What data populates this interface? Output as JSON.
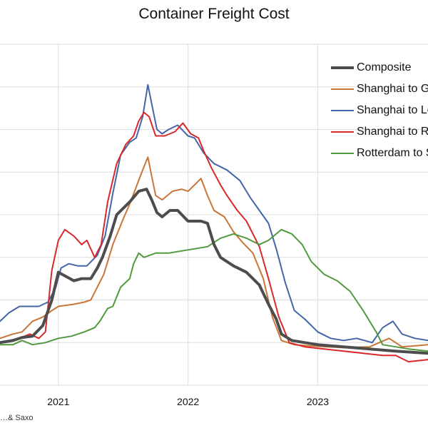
{
  "chart_data": {
    "type": "line",
    "title": "Container Freight Cost",
    "source_text": "…& Saxo",
    "xlabel": "",
    "ylabel": "",
    "x_ticks": [
      "2021",
      "2022",
      "2023"
    ],
    "x_range": [
      2020.55,
      2023.85
    ],
    "y_range": [
      0,
      8
    ],
    "y_tick_labels": [],
    "grid": true,
    "legend_position": "top-right",
    "series": [
      {
        "name": "Composite",
        "color": "#4d4d4d",
        "width": 4,
        "points": [
          [
            2020.55,
            1.0
          ],
          [
            2020.65,
            1.05
          ],
          [
            2020.72,
            1.12
          ],
          [
            2020.8,
            1.15
          ],
          [
            2020.88,
            1.4
          ],
          [
            2020.95,
            2.0
          ],
          [
            2021.0,
            2.65
          ],
          [
            2021.06,
            2.55
          ],
          [
            2021.12,
            2.45
          ],
          [
            2021.18,
            2.5
          ],
          [
            2021.25,
            2.5
          ],
          [
            2021.3,
            2.75
          ],
          [
            2021.34,
            3.0
          ],
          [
            2021.4,
            3.5
          ],
          [
            2021.45,
            4.0
          ],
          [
            2021.55,
            4.3
          ],
          [
            2021.62,
            4.55
          ],
          [
            2021.68,
            4.6
          ],
          [
            2021.72,
            4.35
          ],
          [
            2021.76,
            4.05
          ],
          [
            2021.8,
            3.95
          ],
          [
            2021.86,
            4.1
          ],
          [
            2021.92,
            4.1
          ],
          [
            2022.0,
            3.85
          ],
          [
            2022.05,
            3.85
          ],
          [
            2022.1,
            3.85
          ],
          [
            2022.15,
            3.8
          ],
          [
            2022.2,
            3.3
          ],
          [
            2022.25,
            3.0
          ],
          [
            2022.35,
            2.8
          ],
          [
            2022.45,
            2.65
          ],
          [
            2022.55,
            2.35
          ],
          [
            2022.62,
            1.9
          ],
          [
            2022.68,
            1.55
          ],
          [
            2022.72,
            1.2
          ],
          [
            2022.8,
            1.05
          ],
          [
            2022.9,
            1.0
          ],
          [
            2023.0,
            0.95
          ],
          [
            2023.2,
            0.9
          ],
          [
            2023.4,
            0.85
          ],
          [
            2023.6,
            0.8
          ],
          [
            2023.85,
            0.75
          ]
        ]
      },
      {
        "name": "Shanghai to Genoa",
        "color": "#c87537",
        "width": 2,
        "points": [
          [
            2020.55,
            1.1
          ],
          [
            2020.65,
            1.2
          ],
          [
            2020.72,
            1.25
          ],
          [
            2020.8,
            1.5
          ],
          [
            2020.88,
            1.6
          ],
          [
            2020.95,
            1.75
          ],
          [
            2021.0,
            1.85
          ],
          [
            2021.12,
            1.9
          ],
          [
            2021.2,
            1.95
          ],
          [
            2021.25,
            2.0
          ],
          [
            2021.3,
            2.3
          ],
          [
            2021.35,
            2.6
          ],
          [
            2021.42,
            3.3
          ],
          [
            2021.5,
            3.9
          ],
          [
            2021.55,
            4.25
          ],
          [
            2021.6,
            4.65
          ],
          [
            2021.65,
            5.05
          ],
          [
            2021.69,
            5.35
          ],
          [
            2021.72,
            4.9
          ],
          [
            2021.75,
            4.45
          ],
          [
            2021.8,
            4.35
          ],
          [
            2021.88,
            4.55
          ],
          [
            2021.95,
            4.6
          ],
          [
            2022.0,
            4.55
          ],
          [
            2022.05,
            4.7
          ],
          [
            2022.1,
            4.85
          ],
          [
            2022.15,
            4.45
          ],
          [
            2022.2,
            4.1
          ],
          [
            2022.28,
            3.95
          ],
          [
            2022.35,
            3.6
          ],
          [
            2022.42,
            3.35
          ],
          [
            2022.5,
            3.1
          ],
          [
            2022.58,
            2.5
          ],
          [
            2022.65,
            1.6
          ],
          [
            2022.72,
            1.05
          ],
          [
            2022.82,
            0.95
          ],
          [
            2022.95,
            0.92
          ],
          [
            2023.2,
            0.88
          ],
          [
            2023.4,
            0.9
          ],
          [
            2023.55,
            1.1
          ],
          [
            2023.65,
            0.9
          ],
          [
            2023.85,
            0.95
          ]
        ]
      },
      {
        "name": "Shanghai to Los Angeles",
        "color": "#4366a9",
        "width": 2,
        "points": [
          [
            2020.55,
            1.5
          ],
          [
            2020.62,
            1.7
          ],
          [
            2020.7,
            1.85
          ],
          [
            2020.78,
            1.85
          ],
          [
            2020.85,
            1.85
          ],
          [
            2020.92,
            1.95
          ],
          [
            2020.98,
            2.3
          ],
          [
            2021.02,
            2.75
          ],
          [
            2021.08,
            2.85
          ],
          [
            2021.15,
            2.8
          ],
          [
            2021.22,
            2.8
          ],
          [
            2021.3,
            3.05
          ],
          [
            2021.36,
            3.5
          ],
          [
            2021.42,
            4.5
          ],
          [
            2021.48,
            5.4
          ],
          [
            2021.55,
            5.7
          ],
          [
            2021.6,
            5.8
          ],
          [
            2021.65,
            6.3
          ],
          [
            2021.69,
            7.05
          ],
          [
            2021.72,
            6.6
          ],
          [
            2021.76,
            6.0
          ],
          [
            2021.8,
            5.9
          ],
          [
            2021.85,
            6.0
          ],
          [
            2021.92,
            6.1
          ],
          [
            2022.0,
            5.85
          ],
          [
            2022.05,
            5.8
          ],
          [
            2022.12,
            5.45
          ],
          [
            2022.2,
            5.2
          ],
          [
            2022.3,
            5.05
          ],
          [
            2022.4,
            4.8
          ],
          [
            2022.48,
            4.4
          ],
          [
            2022.55,
            4.1
          ],
          [
            2022.62,
            3.8
          ],
          [
            2022.68,
            3.2
          ],
          [
            2022.75,
            2.4
          ],
          [
            2022.82,
            1.75
          ],
          [
            2022.9,
            1.55
          ],
          [
            2023.0,
            1.25
          ],
          [
            2023.1,
            1.1
          ],
          [
            2023.2,
            1.05
          ],
          [
            2023.3,
            1.1
          ],
          [
            2023.42,
            1.0
          ],
          [
            2023.5,
            1.35
          ],
          [
            2023.58,
            1.5
          ],
          [
            2023.65,
            1.2
          ],
          [
            2023.75,
            1.1
          ],
          [
            2023.85,
            1.05
          ]
        ]
      },
      {
        "name": "Shanghai to Rotterdam",
        "color": "#d8282b",
        "width": 2,
        "points": [
          [
            2020.55,
            1.0
          ],
          [
            2020.62,
            1.05
          ],
          [
            2020.7,
            1.1
          ],
          [
            2020.78,
            1.2
          ],
          [
            2020.85,
            1.1
          ],
          [
            2020.9,
            1.25
          ],
          [
            2020.95,
            2.7
          ],
          [
            2021.0,
            3.4
          ],
          [
            2021.05,
            3.65
          ],
          [
            2021.12,
            3.5
          ],
          [
            2021.18,
            3.3
          ],
          [
            2021.22,
            3.4
          ],
          [
            2021.28,
            3.0
          ],
          [
            2021.33,
            3.3
          ],
          [
            2021.38,
            4.3
          ],
          [
            2021.45,
            5.2
          ],
          [
            2021.52,
            5.65
          ],
          [
            2021.58,
            5.85
          ],
          [
            2021.62,
            6.2
          ],
          [
            2021.66,
            6.4
          ],
          [
            2021.7,
            6.3
          ],
          [
            2021.75,
            5.85
          ],
          [
            2021.82,
            5.85
          ],
          [
            2021.9,
            5.95
          ],
          [
            2021.96,
            6.15
          ],
          [
            2022.02,
            5.9
          ],
          [
            2022.08,
            5.8
          ],
          [
            2022.12,
            5.5
          ],
          [
            2022.18,
            5.1
          ],
          [
            2022.25,
            4.7
          ],
          [
            2022.3,
            4.45
          ],
          [
            2022.38,
            4.1
          ],
          [
            2022.45,
            3.85
          ],
          [
            2022.55,
            3.25
          ],
          [
            2022.62,
            2.5
          ],
          [
            2022.7,
            1.6
          ],
          [
            2022.78,
            1.0
          ],
          [
            2022.9,
            0.9
          ],
          [
            2023.05,
            0.85
          ],
          [
            2023.2,
            0.8
          ],
          [
            2023.35,
            0.75
          ],
          [
            2023.5,
            0.7
          ],
          [
            2023.6,
            0.7
          ],
          [
            2023.7,
            0.55
          ],
          [
            2023.85,
            0.6
          ]
        ]
      },
      {
        "name": "Rotterdam to Shanghai",
        "color": "#4f9a3c",
        "width": 2,
        "points": [
          [
            2020.55,
            0.95
          ],
          [
            2020.65,
            0.95
          ],
          [
            2020.72,
            1.05
          ],
          [
            2020.8,
            0.95
          ],
          [
            2020.9,
            1.0
          ],
          [
            2021.0,
            1.1
          ],
          [
            2021.1,
            1.15
          ],
          [
            2021.2,
            1.25
          ],
          [
            2021.28,
            1.35
          ],
          [
            2021.32,
            1.5
          ],
          [
            2021.38,
            1.8
          ],
          [
            2021.42,
            1.85
          ],
          [
            2021.48,
            2.3
          ],
          [
            2021.55,
            2.5
          ],
          [
            2021.58,
            2.85
          ],
          [
            2021.62,
            3.1
          ],
          [
            2021.66,
            3.0
          ],
          [
            2021.75,
            3.1
          ],
          [
            2021.85,
            3.1
          ],
          [
            2021.95,
            3.15
          ],
          [
            2022.05,
            3.2
          ],
          [
            2022.15,
            3.25
          ],
          [
            2022.25,
            3.45
          ],
          [
            2022.35,
            3.55
          ],
          [
            2022.45,
            3.45
          ],
          [
            2022.55,
            3.3
          ],
          [
            2022.62,
            3.4
          ],
          [
            2022.72,
            3.65
          ],
          [
            2022.8,
            3.55
          ],
          [
            2022.88,
            3.3
          ],
          [
            2022.95,
            2.9
          ],
          [
            2023.05,
            2.6
          ],
          [
            2023.15,
            2.45
          ],
          [
            2023.25,
            2.2
          ],
          [
            2023.35,
            1.75
          ],
          [
            2023.45,
            1.25
          ],
          [
            2023.5,
            0.95
          ],
          [
            2023.6,
            0.9
          ],
          [
            2023.7,
            0.85
          ],
          [
            2023.85,
            0.8
          ]
        ]
      }
    ]
  }
}
